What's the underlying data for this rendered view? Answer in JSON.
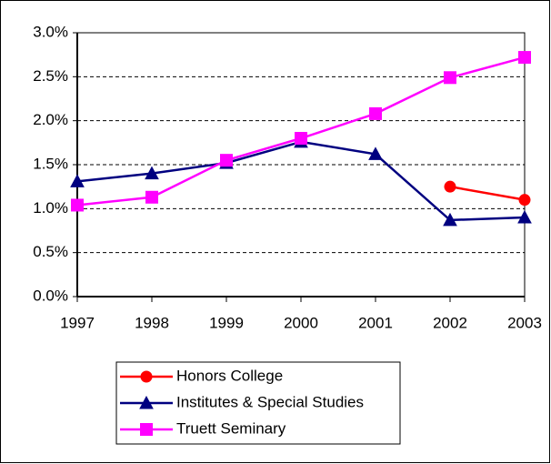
{
  "chart_data": {
    "type": "line",
    "categories": [
      "1997",
      "1998",
      "1999",
      "2000",
      "2001",
      "2002",
      "2003"
    ],
    "series": [
      {
        "name": "Honors College",
        "color": "#ff0000",
        "marker": "circle",
        "values": [
          null,
          null,
          null,
          null,
          null,
          1.25,
          1.1
        ]
      },
      {
        "name": "Institutes & Special Studies",
        "color": "#000080",
        "marker": "triangle",
        "values": [
          1.31,
          1.4,
          1.52,
          1.76,
          1.62,
          0.87,
          0.9
        ]
      },
      {
        "name": "Truett Seminary",
        "color": "#ff00ff",
        "marker": "square",
        "values": [
          1.04,
          1.13,
          1.55,
          1.8,
          2.08,
          2.49,
          2.72
        ]
      }
    ],
    "ylim": [
      0,
      3
    ],
    "yticks": [
      {
        "value": 0,
        "label": "0.0%"
      },
      {
        "value": 0.5,
        "label": "0.5%"
      },
      {
        "value": 1,
        "label": "1.0%"
      },
      {
        "value": 1.5,
        "label": "1.5%"
      },
      {
        "value": 2,
        "label": "2.0%"
      },
      {
        "value": 2.5,
        "label": "2.5%"
      },
      {
        "value": 3,
        "label": "3.0%"
      }
    ],
    "grid": true,
    "legend": "bottom"
  }
}
